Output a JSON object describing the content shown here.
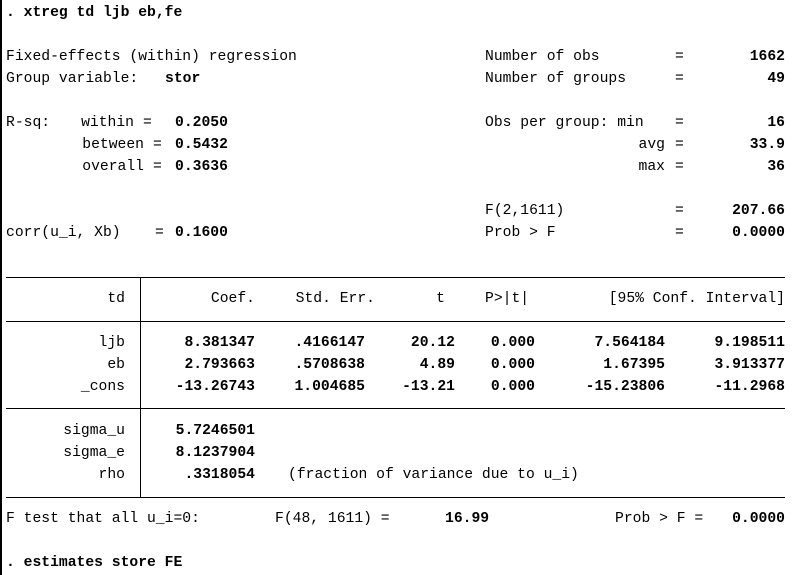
{
  "commands": {
    "cmd1": ". xtreg td ljb eb,fe",
    "cmd2": ". estimates store FE"
  },
  "header": {
    "model_type": "Fixed-effects (within) regression",
    "group_var_label": "Group variable:",
    "group_var": "stor",
    "nobs_label": "Number of obs",
    "nobs": "1662",
    "ngroups_label": "Number of groups",
    "ngroups": "49",
    "rsq_label": "R-sq:",
    "within_label": "within",
    "within": "0.2050",
    "between_label": "between",
    "between": "0.5432",
    "overall_label": "overall",
    "overall": "0.3636",
    "obs_per_group_label": "Obs per group: min",
    "min": "16",
    "avg_label": "avg",
    "avg": "33.9",
    "max_label": "max",
    "max": "36",
    "f_label": "F(2,1611)",
    "f_value": "207.66",
    "corr_label": "corr(u_i, Xb)",
    "corr_value": "0.1600",
    "probf_label": "Prob > F",
    "probf_value": "0.0000",
    "eq": "=",
    "eq_spaced": " = "
  },
  "table": {
    "depvar": "td",
    "columns": [
      "Coef.",
      "Std. Err.",
      "t",
      "P>|t|",
      "[95% Conf. Interval]"
    ],
    "rows": [
      {
        "var": "ljb",
        "coef": "8.381347",
        "se": ".4166147",
        "t": "20.12",
        "p": "0.000",
        "lo": "7.564184",
        "hi": "9.198511"
      },
      {
        "var": "eb",
        "coef": "2.793663",
        "se": ".5708638",
        "t": "4.89",
        "p": "0.000",
        "lo": "1.67395",
        "hi": "3.913377"
      },
      {
        "var": "_cons",
        "coef": "-13.26743",
        "se": "1.004685",
        "t": "-13.21",
        "p": "0.000",
        "lo": "-15.23806",
        "hi": "-11.2968"
      }
    ],
    "sigma_u_label": "sigma_u",
    "sigma_u": "5.7246501",
    "sigma_e_label": "sigma_e",
    "sigma_e": "8.1237904",
    "rho_label": "rho",
    "rho": ".3318054",
    "rho_note": "(fraction of variance due to u_i)"
  },
  "ftest": {
    "label": "F test that all u_i=0:",
    "stat_label": "F(48, 1611) =",
    "stat": "16.99",
    "prob_label": "Prob > F =",
    "prob": "0.0000"
  }
}
